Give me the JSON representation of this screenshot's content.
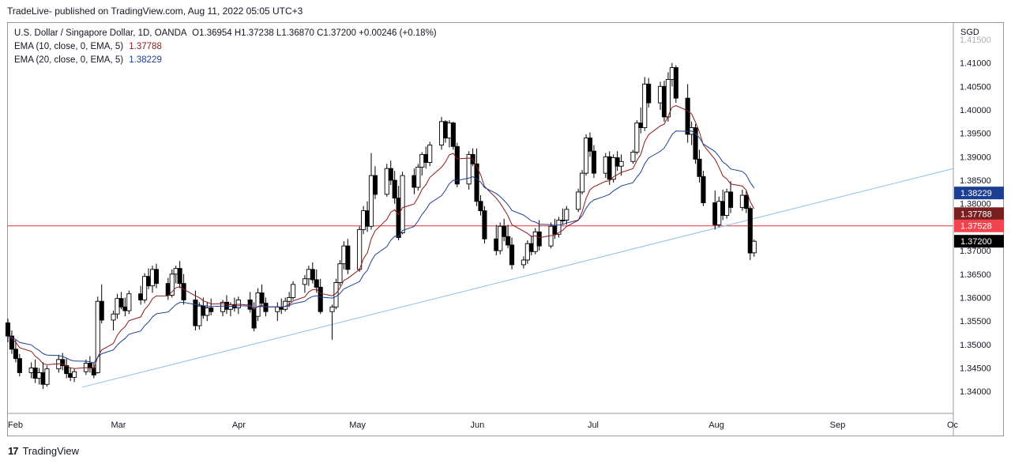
{
  "header": {
    "publisher_line": "TradeLive- published on TradingView.com, Aug 11, 2022 05:05 UTC+3"
  },
  "legend": {
    "symbol": "U.S. Dollar / Singapore Dollar, 1D, OANDA",
    "ohlc": "O1.36954 H1.37238 L1.36870 C1.37200 +0.00246 (+0.18%)",
    "ema10_label": "EMA (10, close, 0, EMA, 5)",
    "ema10_value": "1.37788",
    "ema20_label": "EMA (20, close, 0, EMA, 5)",
    "ema20_value": "1.38229"
  },
  "footer": {
    "logo_glyph": "17",
    "brand": "TradingView"
  },
  "colors": {
    "up_candle_fill": "#ffffff",
    "down_candle_fill": "#000000",
    "candle_outline": "#000000",
    "ema10": "#8b1a1a",
    "ema20": "#1c3f94",
    "trendline": "#8fc1e8",
    "horizontal_level": "#e0343c",
    "tag_ema20": "#1c3f94",
    "tag_ema10": "#7a1f1f",
    "tag_level": "#f2444e",
    "tag_last": "#000000"
  },
  "chart_data": {
    "type": "candlestick",
    "y_axis_unit": "SGD",
    "ylim": [
      1.3375,
      1.4155
    ],
    "y_ticks": [
      "1.41500",
      "1.41000",
      "1.40500",
      "1.40000",
      "1.39500",
      "1.39000",
      "1.38500",
      "1.38000",
      "1.37500",
      "1.37000",
      "1.36500",
      "1.36000",
      "1.35500",
      "1.35000",
      "1.34500",
      "1.34000"
    ],
    "x_ticks": [
      "Feb",
      "Mar",
      "Apr",
      "May",
      "Jun",
      "Jul",
      "Aug",
      "Sep",
      "Oc"
    ],
    "x_range": [
      "2022-02-01",
      "2022-10-01"
    ],
    "grid": false,
    "price_tags": [
      {
        "label": "1.38229",
        "value": 1.38229,
        "role": "ema20"
      },
      {
        "label": "1.37788",
        "value": 1.37788,
        "role": "ema10"
      },
      {
        "label": "1.37528",
        "value": 1.37528,
        "role": "level"
      },
      {
        "label": "1.37200",
        "value": 1.372,
        "role": "last"
      }
    ],
    "horizontal_level": 1.37528,
    "trendline": {
      "x1": "2022-02-20",
      "y1": 1.3409,
      "x2": "2022-10-01",
      "y2": 1.3875
    },
    "candles": [
      {
        "d": "2022-02-01",
        "o": 1.3546,
        "h": 1.3555,
        "l": 1.3505,
        "c": 1.3518
      },
      {
        "d": "2022-02-02",
        "o": 1.3518,
        "h": 1.353,
        "l": 1.348,
        "c": 1.349
      },
      {
        "d": "2022-02-03",
        "o": 1.349,
        "h": 1.351,
        "l": 1.3462,
        "c": 1.347
      },
      {
        "d": "2022-02-04",
        "o": 1.347,
        "h": 1.348,
        "l": 1.3432,
        "c": 1.344
      },
      {
        "d": "2022-02-07",
        "o": 1.344,
        "h": 1.3462,
        "l": 1.3428,
        "c": 1.345
      },
      {
        "d": "2022-02-08",
        "o": 1.345,
        "h": 1.3468,
        "l": 1.3418,
        "c": 1.3428
      },
      {
        "d": "2022-02-09",
        "o": 1.3428,
        "h": 1.345,
        "l": 1.3415,
        "c": 1.344
      },
      {
        "d": "2022-02-10",
        "o": 1.344,
        "h": 1.3462,
        "l": 1.3405,
        "c": 1.3415
      },
      {
        "d": "2022-02-11",
        "o": 1.3415,
        "h": 1.3455,
        "l": 1.341,
        "c": 1.3448
      },
      {
        "d": "2022-02-14",
        "o": 1.3448,
        "h": 1.3478,
        "l": 1.344,
        "c": 1.3468
      },
      {
        "d": "2022-02-15",
        "o": 1.3468,
        "h": 1.3482,
        "l": 1.3445,
        "c": 1.3455
      },
      {
        "d": "2022-02-16",
        "o": 1.3455,
        "h": 1.347,
        "l": 1.3428,
        "c": 1.3438
      },
      {
        "d": "2022-02-17",
        "o": 1.3438,
        "h": 1.345,
        "l": 1.3422,
        "c": 1.343
      },
      {
        "d": "2022-02-18",
        "o": 1.343,
        "h": 1.3448,
        "l": 1.342,
        "c": 1.3442
      },
      {
        "d": "2022-02-21",
        "o": 1.3442,
        "h": 1.3468,
        "l": 1.3435,
        "c": 1.346
      },
      {
        "d": "2022-02-22",
        "o": 1.346,
        "h": 1.3475,
        "l": 1.344,
        "c": 1.345
      },
      {
        "d": "2022-02-23",
        "o": 1.345,
        "h": 1.3462,
        "l": 1.3428,
        "c": 1.3435
      },
      {
        "d": "2022-02-24",
        "o": 1.344,
        "h": 1.3602,
        "l": 1.3438,
        "c": 1.3592
      },
      {
        "d": "2022-02-25",
        "o": 1.3592,
        "h": 1.3628,
        "l": 1.3545,
        "c": 1.3552
      },
      {
        "d": "2022-02-28",
        "o": 1.3552,
        "h": 1.3572,
        "l": 1.353,
        "c": 1.3565
      },
      {
        "d": "2022-03-01",
        "o": 1.3565,
        "h": 1.3608,
        "l": 1.3555,
        "c": 1.3598
      },
      {
        "d": "2022-03-02",
        "o": 1.3598,
        "h": 1.3612,
        "l": 1.3575,
        "c": 1.358
      },
      {
        "d": "2022-03-03",
        "o": 1.358,
        "h": 1.36,
        "l": 1.356,
        "c": 1.3572
      },
      {
        "d": "2022-03-04",
        "o": 1.3572,
        "h": 1.3615,
        "l": 1.3565,
        "c": 1.3608
      },
      {
        "d": "2022-03-07",
        "o": 1.3608,
        "h": 1.3625,
        "l": 1.3585,
        "c": 1.3595
      },
      {
        "d": "2022-03-08",
        "o": 1.3595,
        "h": 1.3652,
        "l": 1.3588,
        "c": 1.3645
      },
      {
        "d": "2022-03-09",
        "o": 1.3645,
        "h": 1.3662,
        "l": 1.3618,
        "c": 1.3625
      },
      {
        "d": "2022-03-10",
        "o": 1.3625,
        "h": 1.3668,
        "l": 1.361,
        "c": 1.366
      },
      {
        "d": "2022-03-11",
        "o": 1.366,
        "h": 1.3672,
        "l": 1.362,
        "c": 1.363
      },
      {
        "d": "2022-03-14",
        "o": 1.363,
        "h": 1.3642,
        "l": 1.3595,
        "c": 1.3605
      },
      {
        "d": "2022-03-15",
        "o": 1.3605,
        "h": 1.366,
        "l": 1.36,
        "c": 1.365
      },
      {
        "d": "2022-03-16",
        "o": 1.365,
        "h": 1.3668,
        "l": 1.363,
        "c": 1.3662
      },
      {
        "d": "2022-03-17",
        "o": 1.3662,
        "h": 1.3678,
        "l": 1.362,
        "c": 1.363
      },
      {
        "d": "2022-03-18",
        "o": 1.363,
        "h": 1.365,
        "l": 1.3585,
        "c": 1.3595
      },
      {
        "d": "2022-03-21",
        "o": 1.3595,
        "h": 1.3615,
        "l": 1.353,
        "c": 1.354
      },
      {
        "d": "2022-03-22",
        "o": 1.354,
        "h": 1.359,
        "l": 1.3532,
        "c": 1.3582
      },
      {
        "d": "2022-03-23",
        "o": 1.3582,
        "h": 1.36,
        "l": 1.3555,
        "c": 1.3562
      },
      {
        "d": "2022-03-24",
        "o": 1.3562,
        "h": 1.359,
        "l": 1.355,
        "c": 1.3578
      },
      {
        "d": "2022-03-25",
        "o": 1.3578,
        "h": 1.3598,
        "l": 1.3562,
        "c": 1.357
      },
      {
        "d": "2022-03-28",
        "o": 1.357,
        "h": 1.3595,
        "l": 1.356,
        "c": 1.359
      },
      {
        "d": "2022-03-29",
        "o": 1.359,
        "h": 1.3605,
        "l": 1.3565,
        "c": 1.3575
      },
      {
        "d": "2022-03-30",
        "o": 1.3575,
        "h": 1.359,
        "l": 1.356,
        "c": 1.3585
      },
      {
        "d": "2022-03-31",
        "o": 1.3585,
        "h": 1.36,
        "l": 1.357,
        "c": 1.3578
      },
      {
        "d": "2022-04-01",
        "o": 1.3578,
        "h": 1.3602,
        "l": 1.3565,
        "c": 1.3595
      },
      {
        "d": "2022-04-04",
        "o": 1.3595,
        "h": 1.3612,
        "l": 1.3568,
        "c": 1.3575
      },
      {
        "d": "2022-04-05",
        "o": 1.3575,
        "h": 1.359,
        "l": 1.3528,
        "c": 1.3535
      },
      {
        "d": "2022-04-06",
        "o": 1.356,
        "h": 1.362,
        "l": 1.355,
        "c": 1.361
      },
      {
        "d": "2022-04-07",
        "o": 1.361,
        "h": 1.3628,
        "l": 1.358,
        "c": 1.3588
      },
      {
        "d": "2022-04-08",
        "o": 1.3588,
        "h": 1.36,
        "l": 1.356,
        "c": 1.357
      },
      {
        "d": "2022-04-11",
        "o": 1.357,
        "h": 1.359,
        "l": 1.355,
        "c": 1.358
      },
      {
        "d": "2022-04-12",
        "o": 1.358,
        "h": 1.3598,
        "l": 1.3565,
        "c": 1.3575
      },
      {
        "d": "2022-04-13",
        "o": 1.3575,
        "h": 1.36,
        "l": 1.357,
        "c": 1.3592
      },
      {
        "d": "2022-04-14",
        "o": 1.3592,
        "h": 1.3612,
        "l": 1.358,
        "c": 1.36
      },
      {
        "d": "2022-04-15",
        "o": 1.36,
        "h": 1.3635,
        "l": 1.3595,
        "c": 1.3628
      },
      {
        "d": "2022-04-18",
        "o": 1.3628,
        "h": 1.3648,
        "l": 1.361,
        "c": 1.364
      },
      {
        "d": "2022-04-19",
        "o": 1.364,
        "h": 1.3668,
        "l": 1.3625,
        "c": 1.366
      },
      {
        "d": "2022-04-20",
        "o": 1.366,
        "h": 1.3675,
        "l": 1.363,
        "c": 1.3638
      },
      {
        "d": "2022-04-21",
        "o": 1.3638,
        "h": 1.366,
        "l": 1.361,
        "c": 1.3622
      },
      {
        "d": "2022-04-22",
        "o": 1.3622,
        "h": 1.364,
        "l": 1.3565,
        "c": 1.357
      },
      {
        "d": "2022-04-25",
        "o": 1.357,
        "h": 1.3585,
        "l": 1.351,
        "c": 1.358
      },
      {
        "d": "2022-04-26",
        "o": 1.358,
        "h": 1.364,
        "l": 1.3575,
        "c": 1.3632
      },
      {
        "d": "2022-04-27",
        "o": 1.3632,
        "h": 1.368,
        "l": 1.3625,
        "c": 1.3672
      },
      {
        "d": "2022-04-28",
        "o": 1.3672,
        "h": 1.372,
        "l": 1.366,
        "c": 1.371
      },
      {
        "d": "2022-04-29",
        "o": 1.371,
        "h": 1.3725,
        "l": 1.365,
        "c": 1.366
      },
      {
        "d": "2022-05-02",
        "o": 1.366,
        "h": 1.3752,
        "l": 1.3655,
        "c": 1.3745
      },
      {
        "d": "2022-05-03",
        "o": 1.3745,
        "h": 1.3795,
        "l": 1.3735,
        "c": 1.3785
      },
      {
        "d": "2022-05-04",
        "o": 1.3785,
        "h": 1.3805,
        "l": 1.374,
        "c": 1.3752
      },
      {
        "d": "2022-05-05",
        "o": 1.3752,
        "h": 1.3908,
        "l": 1.3745,
        "c": 1.386
      },
      {
        "d": "2022-05-06",
        "o": 1.386,
        "h": 1.388,
        "l": 1.381,
        "c": 1.382
      },
      {
        "d": "2022-05-09",
        "o": 1.382,
        "h": 1.3885,
        "l": 1.3815,
        "c": 1.3875
      },
      {
        "d": "2022-05-10",
        "o": 1.3875,
        "h": 1.3892,
        "l": 1.384,
        "c": 1.385
      },
      {
        "d": "2022-05-11",
        "o": 1.385,
        "h": 1.387,
        "l": 1.38,
        "c": 1.3812
      },
      {
        "d": "2022-05-12",
        "o": 1.3812,
        "h": 1.3838,
        "l": 1.3722,
        "c": 1.3728
      },
      {
        "d": "2022-05-13",
        "o": 1.3738,
        "h": 1.3868,
        "l": 1.3735,
        "c": 1.386
      },
      {
        "d": "2022-05-16",
        "o": 1.386,
        "h": 1.3875,
        "l": 1.382,
        "c": 1.3835
      },
      {
        "d": "2022-05-17",
        "o": 1.3835,
        "h": 1.3885,
        "l": 1.3828,
        "c": 1.3878
      },
      {
        "d": "2022-05-18",
        "o": 1.3878,
        "h": 1.391,
        "l": 1.386,
        "c": 1.3905
      },
      {
        "d": "2022-05-19",
        "o": 1.3905,
        "h": 1.3922,
        "l": 1.3875,
        "c": 1.3888
      },
      {
        "d": "2022-05-20",
        "o": 1.3888,
        "h": 1.3932,
        "l": 1.388,
        "c": 1.3925
      },
      {
        "d": "2022-05-23",
        "o": 1.3925,
        "h": 1.3985,
        "l": 1.3915,
        "c": 1.3975
      },
      {
        "d": "2022-05-24",
        "o": 1.3975,
        "h": 1.3978,
        "l": 1.393,
        "c": 1.394
      },
      {
        "d": "2022-05-25",
        "o": 1.394,
        "h": 1.3978,
        "l": 1.392,
        "c": 1.3972
      },
      {
        "d": "2022-05-26",
        "o": 1.3972,
        "h": 1.3975,
        "l": 1.3915,
        "c": 1.3922
      },
      {
        "d": "2022-05-27",
        "o": 1.3922,
        "h": 1.393,
        "l": 1.3835,
        "c": 1.3842
      },
      {
        "d": "2022-05-30",
        "o": 1.3842,
        "h": 1.3912,
        "l": 1.383,
        "c": 1.3905
      },
      {
        "d": "2022-05-31",
        "o": 1.3905,
        "h": 1.3918,
        "l": 1.388,
        "c": 1.3885
      },
      {
        "d": "2022-06-01",
        "o": 1.3885,
        "h": 1.3918,
        "l": 1.3795,
        "c": 1.3805
      },
      {
        "d": "2022-06-02",
        "o": 1.3805,
        "h": 1.3818,
        "l": 1.3775,
        "c": 1.3785
      },
      {
        "d": "2022-06-03",
        "o": 1.3785,
        "h": 1.3795,
        "l": 1.3715,
        "c": 1.3725
      },
      {
        "d": "2022-06-06",
        "o": 1.3725,
        "h": 1.3755,
        "l": 1.369,
        "c": 1.37
      },
      {
        "d": "2022-06-07",
        "o": 1.37,
        "h": 1.376,
        "l": 1.3692,
        "c": 1.3752
      },
      {
        "d": "2022-06-08",
        "o": 1.3752,
        "h": 1.3768,
        "l": 1.372,
        "c": 1.373
      },
      {
        "d": "2022-06-09",
        "o": 1.373,
        "h": 1.3755,
        "l": 1.3705,
        "c": 1.3712
      },
      {
        "d": "2022-06-10",
        "o": 1.3712,
        "h": 1.3728,
        "l": 1.366,
        "c": 1.367
      },
      {
        "d": "2022-06-13",
        "o": 1.367,
        "h": 1.3688,
        "l": 1.3662,
        "c": 1.368
      },
      {
        "d": "2022-06-14",
        "o": 1.368,
        "h": 1.3722,
        "l": 1.3672,
        "c": 1.3715
      },
      {
        "d": "2022-06-15",
        "o": 1.3715,
        "h": 1.3732,
        "l": 1.369,
        "c": 1.3698
      },
      {
        "d": "2022-06-16",
        "o": 1.3698,
        "h": 1.3748,
        "l": 1.3692,
        "c": 1.374
      },
      {
        "d": "2022-06-17",
        "o": 1.374,
        "h": 1.3765,
        "l": 1.37,
        "c": 1.371
      },
      {
        "d": "2022-06-20",
        "o": 1.371,
        "h": 1.376,
        "l": 1.3705,
        "c": 1.3752
      },
      {
        "d": "2022-06-21",
        "o": 1.3752,
        "h": 1.3768,
        "l": 1.3725,
        "c": 1.3735
      },
      {
        "d": "2022-06-22",
        "o": 1.3735,
        "h": 1.3772,
        "l": 1.3728,
        "c": 1.3765
      },
      {
        "d": "2022-06-23",
        "o": 1.3765,
        "h": 1.379,
        "l": 1.3755,
        "c": 1.3765
      },
      {
        "d": "2022-06-24",
        "o": 1.3765,
        "h": 1.3795,
        "l": 1.3755,
        "c": 1.3788
      },
      {
        "d": "2022-06-27",
        "o": 1.3788,
        "h": 1.3832,
        "l": 1.3782,
        "c": 1.3825
      },
      {
        "d": "2022-06-28",
        "o": 1.3825,
        "h": 1.3872,
        "l": 1.382,
        "c": 1.3865
      },
      {
        "d": "2022-06-29",
        "o": 1.3865,
        "h": 1.3948,
        "l": 1.386,
        "c": 1.394
      },
      {
        "d": "2022-06-30",
        "o": 1.394,
        "h": 1.3952,
        "l": 1.39,
        "c": 1.3912
      },
      {
        "d": "2022-07-01",
        "o": 1.3912,
        "h": 1.3925,
        "l": 1.3855,
        "c": 1.3865
      },
      {
        "d": "2022-07-04",
        "o": 1.3865,
        "h": 1.3908,
        "l": 1.3855,
        "c": 1.39
      },
      {
        "d": "2022-07-05",
        "o": 1.39,
        "h": 1.3912,
        "l": 1.384,
        "c": 1.3852
      },
      {
        "d": "2022-07-06",
        "o": 1.3852,
        "h": 1.3905,
        "l": 1.3845,
        "c": 1.3898
      },
      {
        "d": "2022-07-07",
        "o": 1.3898,
        "h": 1.3912,
        "l": 1.387,
        "c": 1.388
      },
      {
        "d": "2022-07-08",
        "o": 1.388,
        "h": 1.3905,
        "l": 1.386,
        "c": 1.389
      },
      {
        "d": "2022-07-11",
        "o": 1.389,
        "h": 1.3915,
        "l": 1.3885,
        "c": 1.391
      },
      {
        "d": "2022-07-12",
        "o": 1.391,
        "h": 1.3978,
        "l": 1.3905,
        "c": 1.3972
      },
      {
        "d": "2022-07-13",
        "o": 1.3972,
        "h": 1.4005,
        "l": 1.395,
        "c": 1.3962
      },
      {
        "d": "2022-07-14",
        "o": 1.3962,
        "h": 1.407,
        "l": 1.3955,
        "c": 1.4055
      },
      {
        "d": "2022-07-15",
        "o": 1.4055,
        "h": 1.4068,
        "l": 1.4005,
        "c": 1.4015
      },
      {
        "d": "2022-07-18",
        "o": 1.4015,
        "h": 1.406,
        "l": 1.4,
        "c": 1.405
      },
      {
        "d": "2022-07-19",
        "o": 1.405,
        "h": 1.4062,
        "l": 1.3975,
        "c": 1.3985
      },
      {
        "d": "2022-07-20",
        "o": 1.3985,
        "h": 1.408,
        "l": 1.3975,
        "c": 1.4065
      },
      {
        "d": "2022-07-21",
        "o": 1.4065,
        "h": 1.41,
        "l": 1.405,
        "c": 1.409
      },
      {
        "d": "2022-07-22",
        "o": 1.409,
        "h": 1.4095,
        "l": 1.4015,
        "c": 1.4025
      },
      {
        "d": "2022-07-25",
        "o": 1.4025,
        "h": 1.4055,
        "l": 1.393,
        "c": 1.3948
      },
      {
        "d": "2022-07-26",
        "o": 1.3948,
        "h": 1.3975,
        "l": 1.3925,
        "c": 1.3962
      },
      {
        "d": "2022-07-27",
        "o": 1.3962,
        "h": 1.397,
        "l": 1.3885,
        "c": 1.3895
      },
      {
        "d": "2022-07-28",
        "o": 1.3895,
        "h": 1.3915,
        "l": 1.3845,
        "c": 1.3858
      },
      {
        "d": "2022-07-29",
        "o": 1.3858,
        "h": 1.387,
        "l": 1.3795,
        "c": 1.3802
      },
      {
        "d": "2022-08-01",
        "o": 1.3802,
        "h": 1.3828,
        "l": 1.3745,
        "c": 1.3755
      },
      {
        "d": "2022-08-02",
        "o": 1.3755,
        "h": 1.3815,
        "l": 1.375,
        "c": 1.3805
      },
      {
        "d": "2022-08-03",
        "o": 1.3805,
        "h": 1.383,
        "l": 1.3765,
        "c": 1.3775
      },
      {
        "d": "2022-08-04",
        "o": 1.3775,
        "h": 1.3832,
        "l": 1.3768,
        "c": 1.3825
      },
      {
        "d": "2022-08-05",
        "o": 1.3825,
        "h": 1.3848,
        "l": 1.378,
        "c": 1.3792
      },
      {
        "d": "2022-08-08",
        "o": 1.3792,
        "h": 1.383,
        "l": 1.3785,
        "c": 1.3818
      },
      {
        "d": "2022-08-09",
        "o": 1.3818,
        "h": 1.3828,
        "l": 1.378,
        "c": 1.379
      },
      {
        "d": "2022-08-10",
        "o": 1.379,
        "h": 1.3795,
        "l": 1.368,
        "c": 1.3695
      },
      {
        "d": "2022-08-11",
        "o": 1.36954,
        "h": 1.37238,
        "l": 1.3687,
        "c": 1.372
      }
    ]
  }
}
